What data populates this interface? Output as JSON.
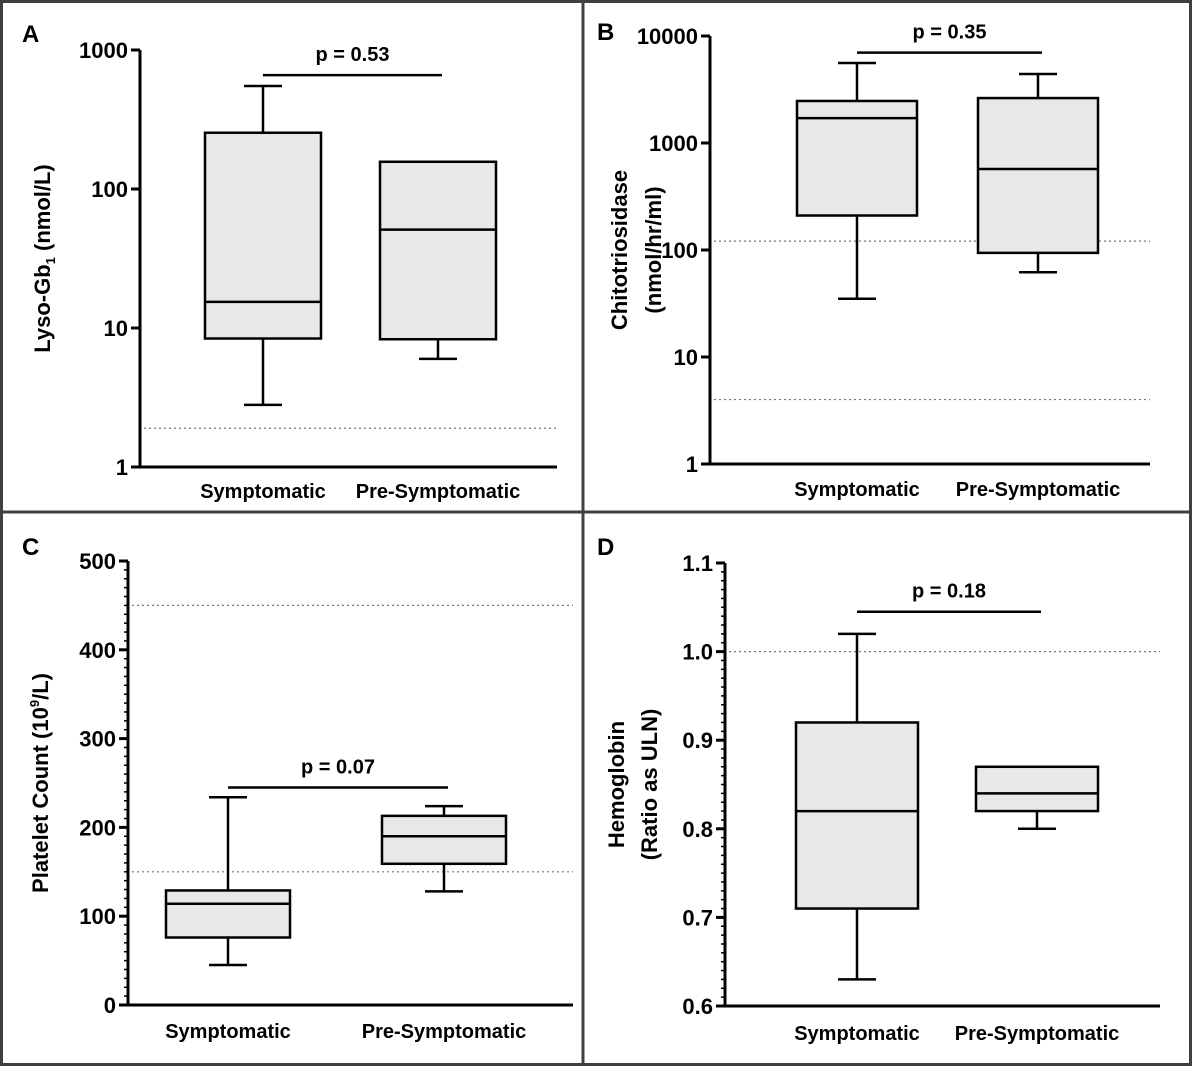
{
  "chart_data": [
    {
      "panel": "A",
      "type": "box",
      "ylabel": {
        "main": "Lyso-Gb",
        "sub": "1",
        "rest": " (nmol/L)"
      },
      "yscale": "log",
      "ylim": [
        1,
        1000
      ],
      "yticks": [
        1,
        10,
        100,
        1000
      ],
      "ytick_labels": [
        "1",
        "10",
        "100",
        "1000"
      ],
      "categories": [
        "Symptomatic",
        "Pre-Symptomatic"
      ],
      "boxes": [
        {
          "min": 2.8,
          "q1": 8.4,
          "median": 15.4,
          "q3": 254,
          "max": 551
        },
        {
          "min": 6.0,
          "q1": 8.3,
          "median": 51,
          "q3": 157,
          "max": 157
        }
      ],
      "reference_lines": [
        1.9
      ],
      "comparison": {
        "label": "p = 0.53",
        "y": 660
      }
    },
    {
      "panel": "B",
      "type": "box",
      "ylabel": {
        "line1": "Chitotriosidase",
        "line2": "(nmol/hr/ml)"
      },
      "yscale": "log",
      "ylim": [
        1,
        10000
      ],
      "yticks": [
        1,
        10,
        100,
        1000,
        10000
      ],
      "ytick_labels": [
        "1",
        "10",
        "100",
        "1000",
        "10000"
      ],
      "categories": [
        "Symptomatic",
        "Pre-Symptomatic"
      ],
      "boxes": [
        {
          "min": 35,
          "q1": 210,
          "median": 1710,
          "q3": 2470,
          "max": 5600
        },
        {
          "min": 62,
          "q1": 94,
          "median": 571,
          "q3": 2630,
          "max": 4420
        }
      ],
      "reference_lines": [
        121,
        4.0
      ],
      "comparison": {
        "label": "p = 0.35",
        "y": 7000
      }
    },
    {
      "panel": "C",
      "type": "box",
      "ylabel": {
        "main": "Platelet Count (10",
        "sup": "9",
        "rest": "/L)"
      },
      "yscale": "linear",
      "ylim": [
        0,
        500
      ],
      "yticks": [
        0,
        100,
        200,
        300,
        400,
        500
      ],
      "ytick_labels": [
        "0",
        "100",
        "200",
        "300",
        "400",
        "500"
      ],
      "minor_step": 10,
      "categories": [
        "Symptomatic",
        "Pre-Symptomatic"
      ],
      "boxes": [
        {
          "min": 45,
          "q1": 76,
          "median": 114,
          "q3": 129,
          "max": 234
        },
        {
          "min": 128,
          "q1": 159,
          "median": 190,
          "q3": 213,
          "max": 224
        }
      ],
      "reference_lines": [
        450,
        150
      ],
      "comparison": {
        "label": "p = 0.07",
        "y": 245
      }
    },
    {
      "panel": "D",
      "type": "box",
      "ylabel": {
        "line1": "Hemoglobin",
        "line2": "(Ratio as ULN)"
      },
      "yscale": "linear",
      "ylim": [
        0.6,
        1.1
      ],
      "yticks": [
        0.6,
        0.7,
        0.8,
        0.9,
        1.0,
        1.1
      ],
      "ytick_labels": [
        "0.6",
        "0.7",
        "0.8",
        "0.9",
        "1.0",
        "1.1"
      ],
      "minor_step": 0.01,
      "categories": [
        "Symptomatic",
        "Pre-Symptomatic"
      ],
      "boxes": [
        {
          "min": 0.63,
          "q1": 0.71,
          "median": 0.82,
          "q3": 0.92,
          "max": 1.02
        },
        {
          "min": 0.8,
          "q1": 0.82,
          "median": 0.84,
          "q3": 0.87,
          "max": 0.87
        }
      ],
      "reference_lines": [
        1.0
      ],
      "comparison": {
        "label": "p = 0.18",
        "y": 1.045
      }
    }
  ],
  "colors": {
    "box_fill": "#e8e8e8",
    "stroke": "#000000",
    "frame": "#3c4146",
    "reference_line": "#777777"
  }
}
